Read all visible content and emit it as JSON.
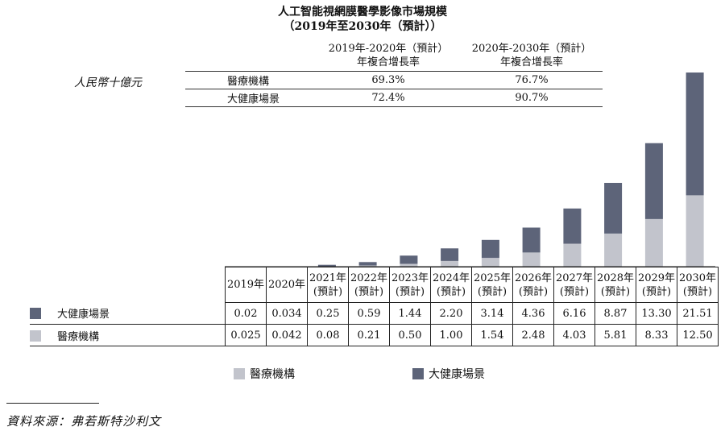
{
  "title_line1": "人工智能視網膜醫學影像市場規模",
  "title_line2": "（2019年至2030年（預計））",
  "unit_label": "人民幣十億元",
  "cagr_table": {
    "header": [
      "",
      "2019年-2020年（預計）\n年複合增長率",
      "2020年-2030年（預計）\n年複合增長率"
    ],
    "rows": [
      {
        "label": "醫療機構",
        "v1": "69.3%",
        "v2": "76.7%"
      },
      {
        "label": "大健康場景",
        "v1": "72.4%",
        "v2": "90.7%"
      }
    ]
  },
  "chart_data": {
    "type": "bar",
    "stacked": true,
    "categories": [
      "2019年",
      "2020年",
      "2021年\n(預計)",
      "2022年\n(預計)",
      "2023年\n(預計)",
      "2024年\n(預計)",
      "2025年\n(預計)",
      "2026年\n(預計)",
      "2027年\n(預計)",
      "2028年\n(預計)",
      "2029年\n(預計)",
      "2030年\n(預計)"
    ],
    "series": [
      {
        "name": "醫療機構",
        "color": "#c2c4cc",
        "values": [
          0.025,
          0.042,
          0.08,
          0.21,
          0.5,
          1.0,
          1.54,
          2.48,
          4.03,
          5.81,
          8.33,
          12.5
        ],
        "labels": [
          "0.025",
          "0.042",
          "0.08",
          "0.21",
          "0.50",
          "1.00",
          "1.54",
          "2.48",
          "4.03",
          "5.81",
          "8.33",
          "12.50"
        ]
      },
      {
        "name": "大健康場景",
        "color": "#5d6479",
        "values": [
          0.02,
          0.034,
          0.25,
          0.59,
          1.44,
          2.2,
          3.14,
          4.36,
          6.16,
          8.87,
          13.3,
          21.51
        ],
        "labels": [
          "0.02",
          "0.034",
          "0.25",
          "0.59",
          "1.44",
          "2.20",
          "3.14",
          "4.36",
          "6.16",
          "8.87",
          "13.30",
          "21.51"
        ]
      }
    ],
    "ylabel": "人民幣十億元",
    "ylim": [
      0,
      34.01
    ],
    "grid": false,
    "legend": "bottom"
  },
  "source": "資料來源：弗若斯特沙利文"
}
